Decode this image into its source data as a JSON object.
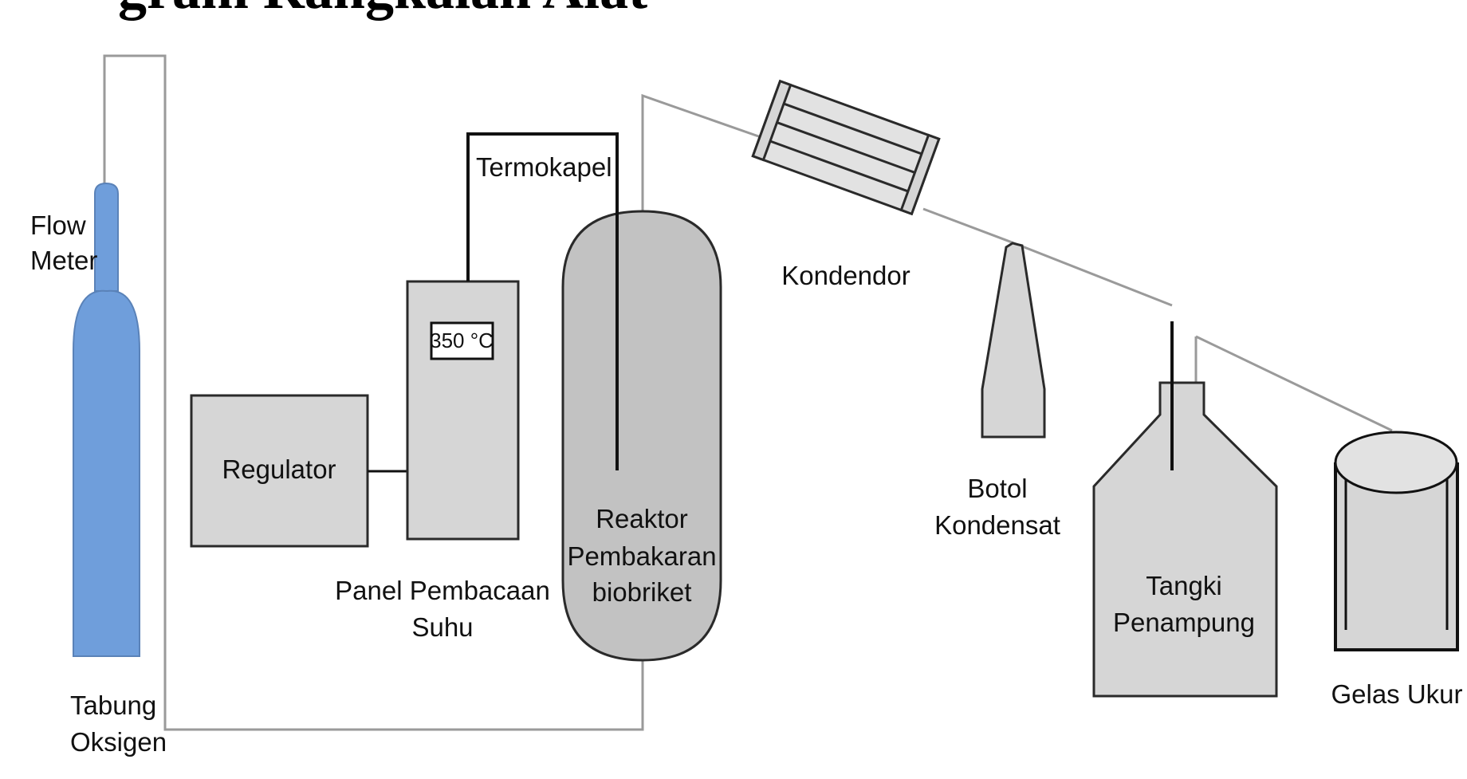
{
  "heading_partial": "gram Rangkaian Alat",
  "labels": {
    "flow_meter_line1": "Flow",
    "flow_meter_line2": "Meter",
    "tabung_line1": "Tabung",
    "tabung_line2": "Oksigen",
    "regulator": "Regulator",
    "termokapel": "Termokapel",
    "panel_line1": "Panel Pembacaan",
    "panel_line2": "Suhu",
    "display": "350 °C",
    "reaktor_line1": "Reaktor",
    "reaktor_line2": "Pembakaran",
    "reaktor_line3": "biobriket",
    "kondensor": "Kondendor",
    "botol_line1": "Botol",
    "botol_line2": "Kondensat",
    "tangki_line1": "Tangki",
    "tangki_line2": "Penampung",
    "gelas": "Gelas Ukur"
  },
  "colors": {
    "cylinder": "#6f9edb",
    "reactor": "#c2c2c2",
    "equipment": "#d6d6d6",
    "outline": "#2a2a2a",
    "pipe": "#9a9a9a"
  }
}
